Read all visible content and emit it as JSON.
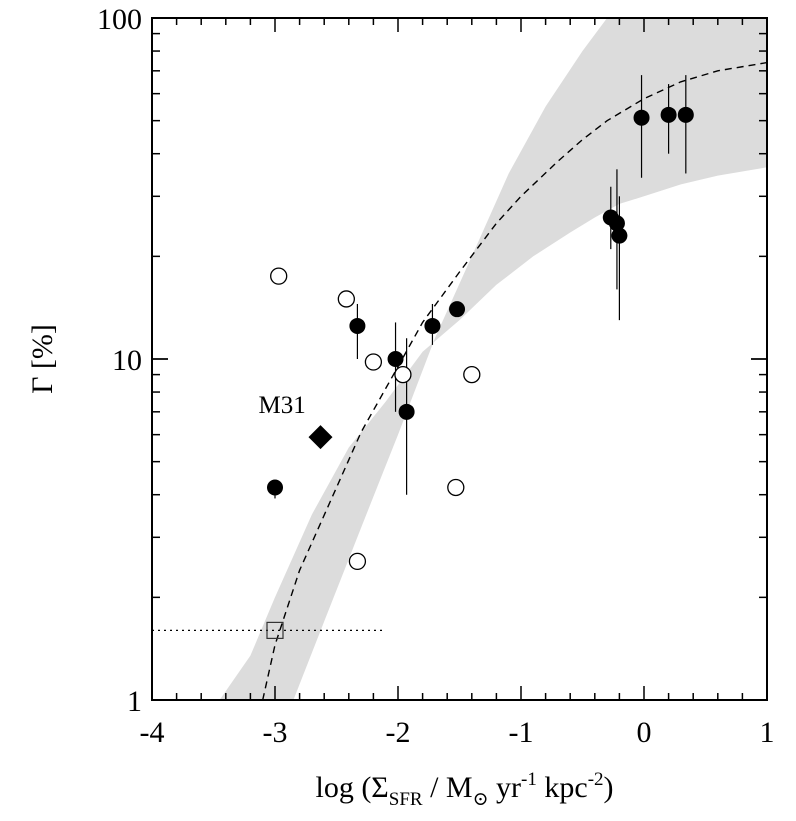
{
  "chart_data": {
    "type": "scatter",
    "x_axis": {
      "range": [
        -4,
        1
      ],
      "ticks": [
        -4,
        -3,
        -2,
        -1,
        0,
        1
      ],
      "tick_labels": [
        "-4",
        "-3",
        "-2",
        "-1",
        "0",
        "1"
      ],
      "label": {
        "prefix": "log (Σ",
        "sub1": "SFR",
        "middle": " / M",
        "sub2": "⊙",
        "yr": " yr",
        "sup1": "-1",
        "kpc": " kpc",
        "sup2": "-2",
        "suffix": ")"
      }
    },
    "y_axis": {
      "scale": "log",
      "range": [
        1,
        100
      ],
      "ticks": [
        1,
        10,
        100
      ],
      "tick_labels": [
        "1",
        "10",
        "100"
      ],
      "label": "Γ [%]"
    },
    "grid": false,
    "legend": "none",
    "model": {
      "style": "dashed",
      "description_points": [
        [
          -3.1,
          1.0
        ],
        [
          -3.0,
          1.45
        ],
        [
          -2.8,
          2.4
        ],
        [
          -2.5,
          4.2
        ],
        [
          -2.3,
          6.1
        ],
        [
          -2.0,
          9.5
        ],
        [
          -1.8,
          12.8
        ],
        [
          -1.5,
          18.0
        ],
        [
          -1.2,
          25.0
        ],
        [
          -1.0,
          30.0
        ],
        [
          -0.7,
          38.0
        ],
        [
          -0.5,
          44.0
        ],
        [
          -0.3,
          50.0
        ],
        [
          0.0,
          58.0
        ],
        [
          0.3,
          65.0
        ],
        [
          0.6,
          70.0
        ],
        [
          1.0,
          74.0
        ]
      ],
      "band_upper": [
        [
          -2.85,
          1.0
        ],
        [
          -2.6,
          1.7
        ],
        [
          -2.3,
          3.2
        ],
        [
          -2.0,
          6.0
        ],
        [
          -1.7,
          11.5
        ],
        [
          -1.4,
          20.0
        ],
        [
          -1.1,
          35.0
        ],
        [
          -0.8,
          55.0
        ],
        [
          -0.5,
          80.0
        ],
        [
          -0.3,
          100.0
        ],
        [
          1.0,
          100.0
        ]
      ],
      "band_lower": [
        [
          -3.45,
          1.0
        ],
        [
          -3.2,
          1.35
        ],
        [
          -3.0,
          2.0
        ],
        [
          -2.7,
          3.5
        ],
        [
          -2.4,
          5.5
        ],
        [
          -2.1,
          7.5
        ],
        [
          -1.8,
          10.5
        ],
        [
          -1.5,
          13.0
        ],
        [
          -1.2,
          16.5
        ],
        [
          -0.9,
          20.0
        ],
        [
          -0.6,
          23.5
        ],
        [
          -0.4,
          26.0
        ],
        [
          -0.2,
          28.5
        ],
        [
          0.0,
          30.0
        ],
        [
          0.3,
          32.5
        ],
        [
          0.6,
          34.5
        ],
        [
          1.0,
          36.5
        ]
      ],
      "band_color": "#dcdcdc"
    },
    "series": [
      {
        "marker": "filled-circle",
        "color": "#000000",
        "points": [
          {
            "x": -3.0,
            "y": 4.2,
            "err": [
              3.9,
              4.4
            ]
          },
          {
            "x": -2.33,
            "y": 12.5,
            "err": [
              10.0,
              14.5
            ]
          },
          {
            "x": -2.02,
            "y": 10.0,
            "err": [
              7.0,
              12.8
            ]
          },
          {
            "x": -1.93,
            "y": 7.0,
            "err": [
              4.0,
              11.5
            ]
          },
          {
            "x": -1.72,
            "y": 12.5,
            "err": [
              11.0,
              14.5
            ]
          },
          {
            "x": -1.52,
            "y": 14.0,
            "err": null
          },
          {
            "x": -0.27,
            "y": 26.0,
            "err": [
              21.0,
              32.0
            ]
          },
          {
            "x": -0.22,
            "y": 25.0,
            "err": [
              16.0,
              36.0
            ]
          },
          {
            "x": -0.2,
            "y": 23.0,
            "err": [
              13.0,
              30.0
            ]
          },
          {
            "x": -0.02,
            "y": 51.0,
            "err": [
              34.0,
              68.0
            ]
          },
          {
            "x": 0.2,
            "y": 52.0,
            "err": [
              40.0,
              64.0
            ]
          },
          {
            "x": 0.34,
            "y": 52.0,
            "err": [
              35.0,
              68.0
            ]
          }
        ]
      },
      {
        "marker": "open-circle",
        "color": "#000000",
        "points": [
          {
            "x": -2.97,
            "y": 17.5
          },
          {
            "x": -2.42,
            "y": 15.0
          },
          {
            "x": -2.2,
            "y": 9.8
          },
          {
            "x": -1.96,
            "y": 9.0
          },
          {
            "x": -1.4,
            "y": 9.0
          },
          {
            "x": -1.53,
            "y": 4.2
          },
          {
            "x": -2.33,
            "y": 2.55
          }
        ]
      },
      {
        "marker": "filled-diamond",
        "color": "#000000",
        "points": [
          {
            "x": -2.63,
            "y": 5.9,
            "label": "M31"
          }
        ]
      },
      {
        "marker": "open-square",
        "color": "#333333",
        "points": [
          {
            "x": -3.0,
            "y": 1.6
          }
        ]
      }
    ],
    "reference_line": {
      "style": "dotted",
      "y": 1.6,
      "x_range": [
        -4,
        -2.1
      ]
    },
    "annotations": [
      "M31"
    ]
  }
}
